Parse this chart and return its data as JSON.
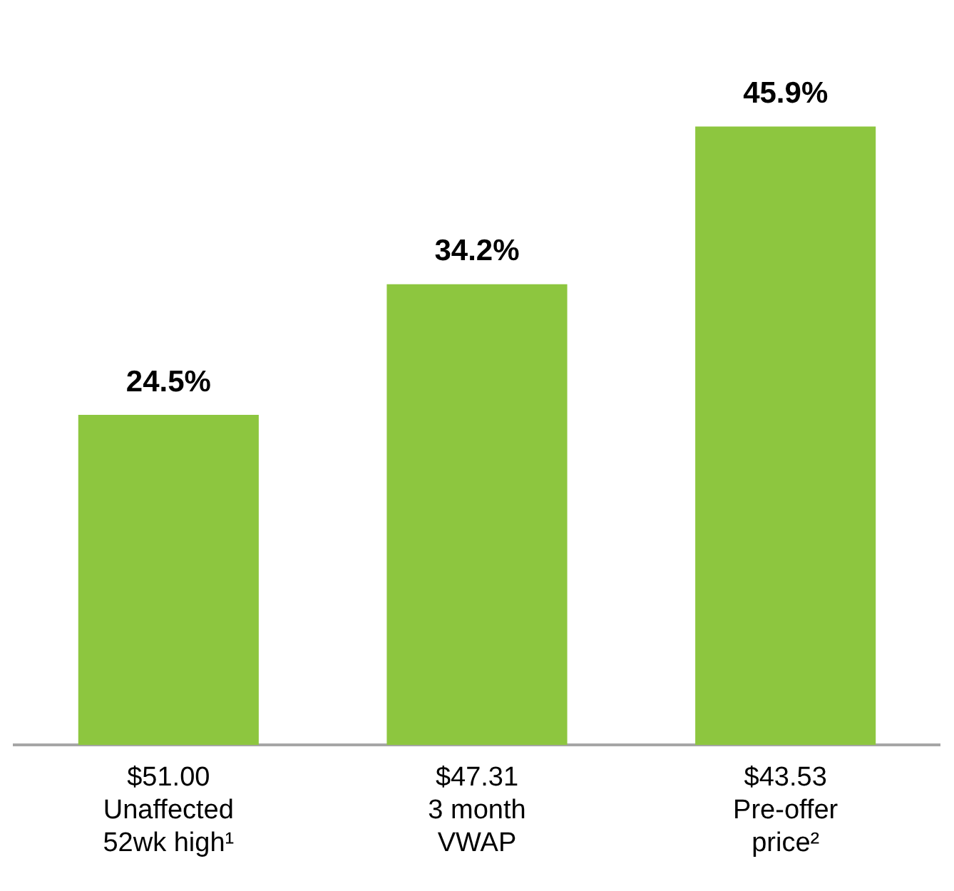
{
  "chart_data": {
    "type": "bar",
    "categories": [
      "$51.00\nUnaffected\n52wk high¹",
      "$47.31\n3 month\nVWAP",
      "$43.53\nPre-offer\nprice²"
    ],
    "values": [
      24.5,
      34.2,
      45.9
    ],
    "value_labels": [
      "24.5%",
      "34.2%",
      "45.9%"
    ],
    "color": "#8dc63f",
    "grid": false,
    "legend": false,
    "tick_labels": "x"
  }
}
